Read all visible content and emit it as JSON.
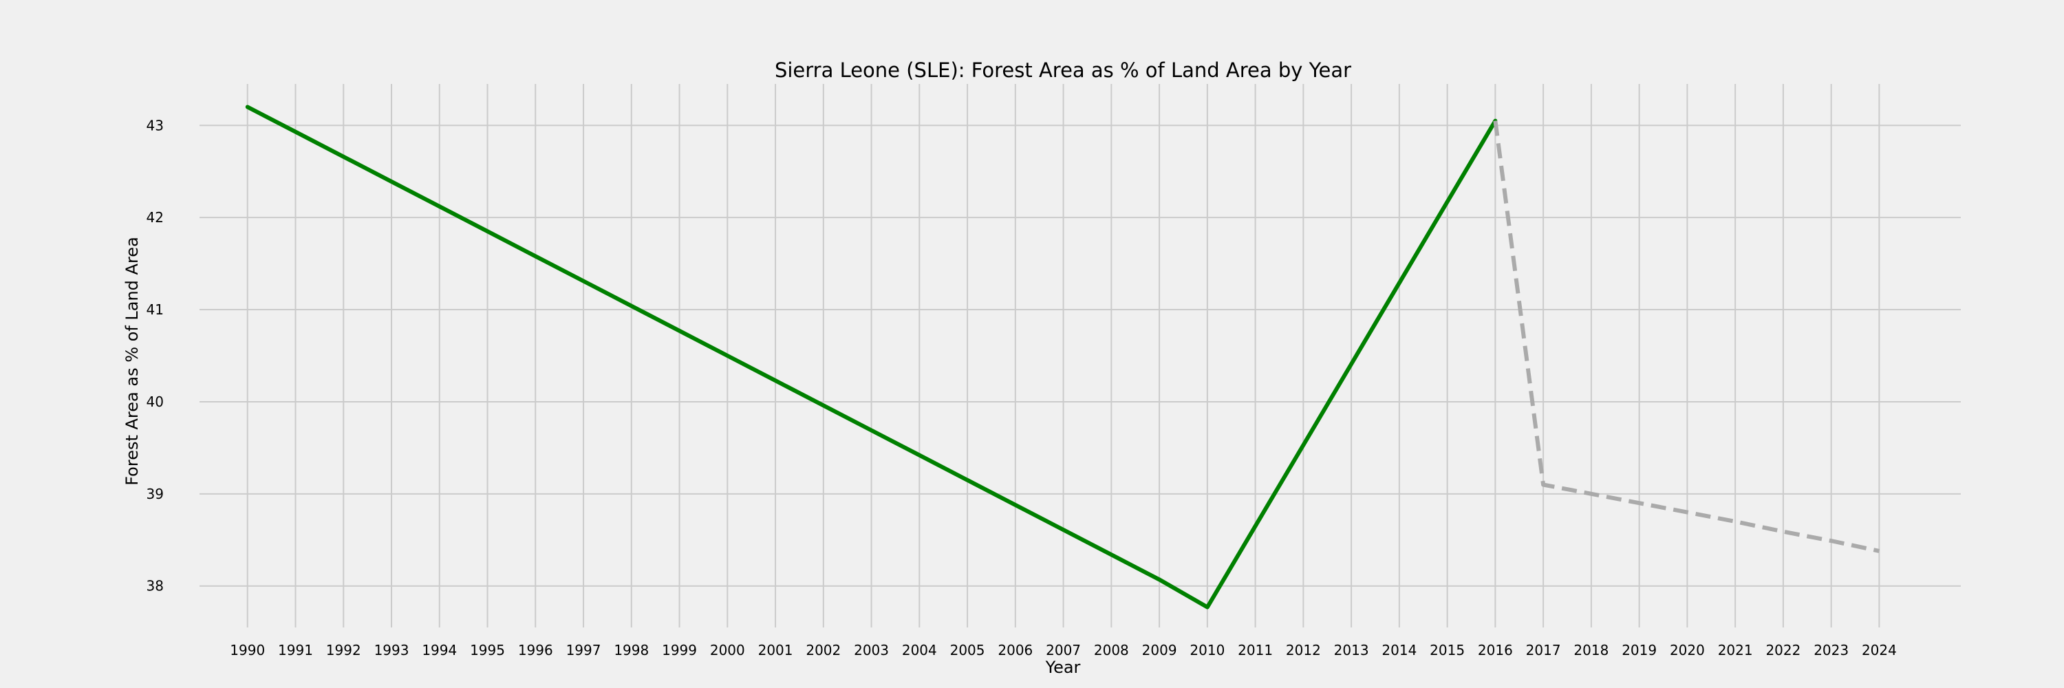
{
  "chart_data": {
    "type": "line",
    "title": "Sierra Leone (SLE): Forest Area as % of Land Area by Year",
    "xlabel": "Year",
    "ylabel": "Forest Area as % of Land Area",
    "xlim": [
      1989,
      2025.7
    ],
    "ylim": [
      37.55,
      43.45
    ],
    "x_ticks": [
      1990,
      1991,
      1992,
      1993,
      1994,
      1995,
      1996,
      1997,
      1998,
      1999,
      2000,
      2001,
      2002,
      2003,
      2004,
      2005,
      2006,
      2007,
      2008,
      2009,
      2010,
      2011,
      2012,
      2013,
      2014,
      2015,
      2016,
      2017,
      2018,
      2019,
      2020,
      2021,
      2022,
      2023,
      2024
    ],
    "y_ticks": [
      38,
      39,
      40,
      41,
      42,
      43
    ],
    "grid": true,
    "background": "#f0f0f0",
    "series": [
      {
        "color": "#008000",
        "style": "solid",
        "x": [
          1990,
          1991,
          1992,
          1993,
          1994,
          1995,
          1996,
          1997,
          1998,
          1999,
          2000,
          2001,
          2002,
          2003,
          2004,
          2005,
          2006,
          2007,
          2008,
          2009,
          2010,
          2011,
          2012,
          2013,
          2014,
          2015,
          2016
        ],
        "y": [
          43.2,
          42.93,
          42.66,
          42.39,
          42.12,
          41.85,
          41.58,
          41.31,
          41.04,
          40.77,
          40.5,
          40.23,
          39.96,
          39.69,
          39.42,
          39.15,
          38.88,
          38.61,
          38.34,
          38.07,
          37.77,
          38.65,
          39.53,
          40.41,
          41.29,
          42.17,
          43.05
        ]
      },
      {
        "color": "#aaaaaa",
        "style": "dashed",
        "x": [
          2016,
          2017,
          2018,
          2019,
          2020,
          2021,
          2022,
          2023,
          2024
        ],
        "y": [
          43.05,
          39.1,
          39.0,
          38.9,
          38.8,
          38.7,
          38.59,
          38.49,
          38.38
        ]
      }
    ]
  }
}
